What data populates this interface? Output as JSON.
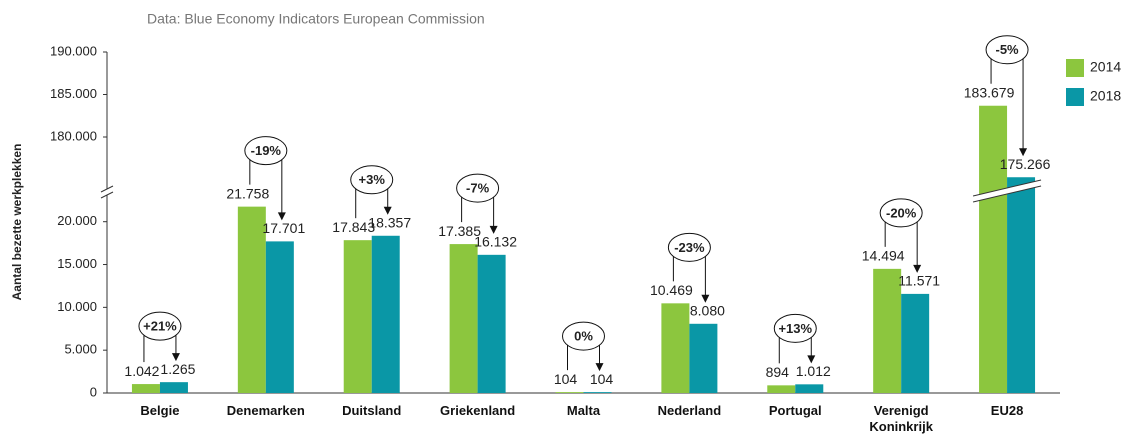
{
  "chart_data": {
    "type": "bar",
    "subtitle": "Data: Blue Economy Indicators European Commission",
    "y_label": "Aantal bezette werkplekken",
    "categories": [
      "Belgie",
      "Denemarken",
      "Duitsland",
      "Griekenland",
      "Malta",
      "Nederland",
      "Portugal",
      "Verenigd Koninkrijk",
      "EU28"
    ],
    "series": [
      {
        "name": "2014",
        "color": "#8cc63e",
        "values": [
          1042,
          21758,
          17843,
          17385,
          104,
          10469,
          894,
          14494,
          183679
        ],
        "value_labels": [
          "1.042",
          "21.758",
          "17.843",
          "17.385",
          "104",
          "10.469",
          "894",
          "14.494",
          "183.679"
        ]
      },
      {
        "name": "2018",
        "color": "#0a97a6",
        "values": [
          1265,
          17701,
          18357,
          16132,
          104,
          8080,
          1012,
          11571,
          175266
        ],
        "value_labels": [
          "1.265",
          "17.701",
          "18.357",
          "16.132",
          "104",
          "8.080",
          "1.012",
          "11.571",
          "175.266"
        ]
      }
    ],
    "changes": [
      "+21%",
      "-19%",
      "+3%",
      "-7%",
      "0%",
      "-23%",
      "+13%",
      "-20%",
      "-5%"
    ],
    "axis_break": {
      "lower": {
        "ylim": [
          0,
          23000
        ],
        "yticks": [
          0,
          {
            "value": 5000,
            "label": "5.000"
          },
          {
            "value": 10000,
            "label": "10.000"
          },
          {
            "value": 15000,
            "label": "15.000"
          },
          {
            "value": 20000,
            "label": "20.000"
          }
        ]
      },
      "upper": {
        "ylim": [
          174000,
          190000
        ],
        "yticks": [
          {
            "value": 180000,
            "label": "180.000"
          },
          {
            "value": 185000,
            "label": "185.000"
          },
          {
            "value": 190000,
            "label": "190.000"
          }
        ]
      }
    },
    "legend": "top-right",
    "grid": false
  }
}
